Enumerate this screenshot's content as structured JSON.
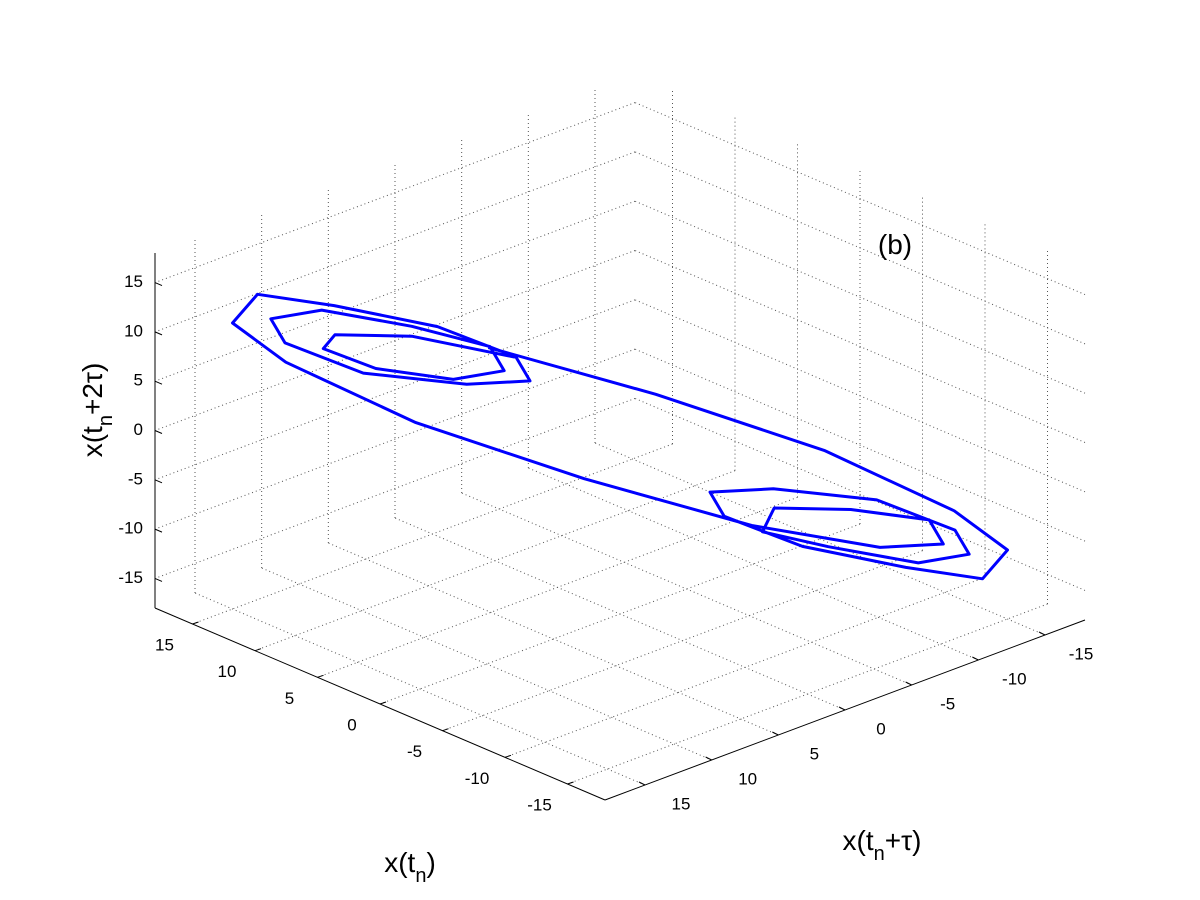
{
  "chart_data": {
    "type": "line3d",
    "annotation": "(b)",
    "xlabel": [
      "x(t",
      "n",
      ")"
    ],
    "ylabel": [
      "x(t",
      "n",
      "+τ)"
    ],
    "zlabel": [
      "x(t",
      "n",
      "+2τ)"
    ],
    "xlim": [
      -18,
      18
    ],
    "ylim": [
      -18,
      18
    ],
    "zlim": [
      -18,
      18
    ],
    "xticks": [
      -15,
      -10,
      -5,
      0,
      5,
      10,
      15
    ],
    "yticks": [
      -15,
      -10,
      -5,
      0,
      5,
      10,
      15
    ],
    "zticks": [
      -15,
      -10,
      -5,
      0,
      5,
      10,
      15
    ],
    "grid": true,
    "series": [
      {
        "color": "#0000ff",
        "x": [
          2,
          6,
          10,
          12,
          11,
          8,
          5,
          4,
          6,
          10,
          13,
          14,
          12,
          8,
          4,
          3,
          5,
          9,
          13,
          15,
          15,
          11,
          5,
          -2,
          -8,
          -12,
          -13,
          -11,
          -7,
          -5,
          -6,
          -10,
          -13,
          -14,
          -12,
          -8,
          -4,
          -3,
          -5,
          -9,
          -13,
          -15,
          -15,
          -11,
          -5,
          2
        ],
        "y": [
          6,
          10,
          12,
          11,
          8,
          5,
          4,
          6,
          10,
          13,
          14,
          12,
          8,
          4,
          3,
          5,
          9,
          13,
          15,
          15,
          11,
          5,
          -2,
          -8,
          -12,
          -13,
          -11,
          -7,
          -5,
          -6,
          -10,
          -13,
          -14,
          -12,
          -8,
          -4,
          -3,
          -5,
          -9,
          -13,
          -15,
          -15,
          -11,
          -5,
          2,
          8
        ],
        "z": [
          10,
          12,
          11,
          8,
          5,
          4,
          6,
          10,
          13,
          14,
          12,
          8,
          4,
          3,
          5,
          9,
          13,
          15,
          15,
          11,
          5,
          -2,
          -8,
          -12,
          -13,
          -11,
          -7,
          -5,
          -6,
          -10,
          -13,
          -14,
          -12,
          -8,
          -4,
          -3,
          -5,
          -9,
          -13,
          -15,
          -15,
          -11,
          -5,
          2,
          8,
          12
        ]
      }
    ]
  }
}
